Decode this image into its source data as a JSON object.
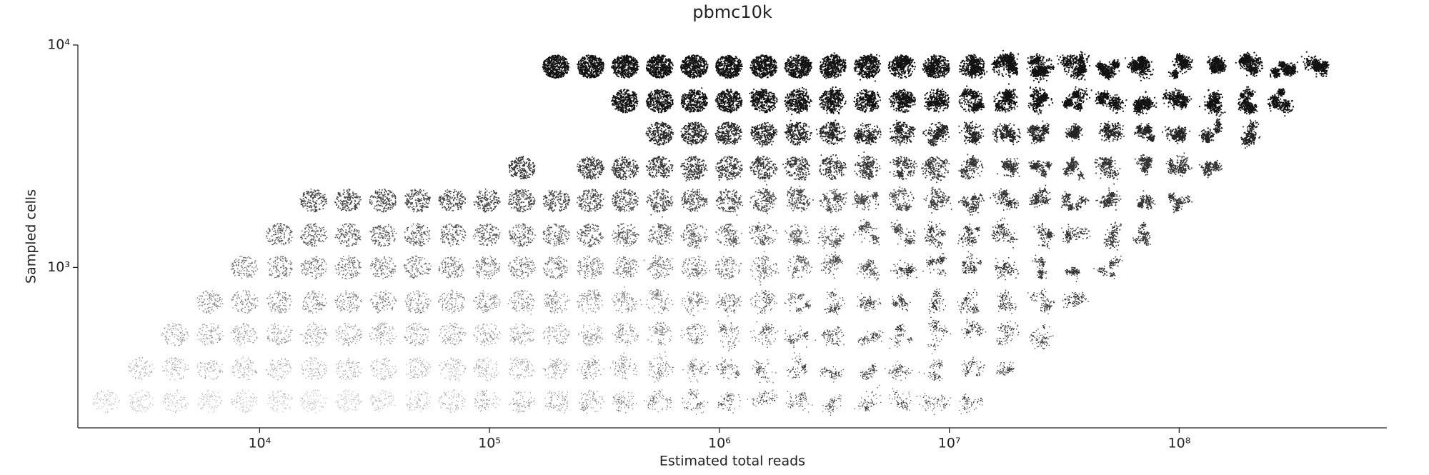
{
  "chart_data": {
    "type": "scatter",
    "title": "pbmc10k",
    "x_label": "Estimated total reads",
    "y_label": "Sampled cells",
    "log_x": true,
    "log_y": true,
    "color": "#000000",
    "xlim": [
      1620,
      800000000
    ],
    "ylim": [
      190,
      10000
    ],
    "xticks": [
      {
        "value": 10000,
        "label": "10⁴"
      },
      {
        "value": 100000,
        "label": "10⁵"
      },
      {
        "value": 1000000,
        "label": "10⁶"
      },
      {
        "value": 10000000,
        "label": "10⁷"
      },
      {
        "value": 100000000,
        "label": "10⁸"
      }
    ],
    "yticks": [
      {
        "value": 1000,
        "label": "10³"
      },
      {
        "value": 10000,
        "label": "10⁴"
      }
    ],
    "rows": [
      {
        "y": 250,
        "x": [
          2150,
          3040,
          4300,
          6080,
          8600,
          12200,
          17200,
          24300,
          34400,
          48600,
          68800,
          97300,
          138000,
          195000,
          275000,
          389000,
          550000,
          778000,
          1100000,
          1560000,
          2200000,
          3110000,
          4400000,
          6230000,
          8810000,
          12500000
        ]
      },
      {
        "y": 350,
        "x": [
          3040,
          4300,
          6080,
          8600,
          12200,
          17200,
          24300,
          34400,
          48600,
          68800,
          97300,
          138000,
          195000,
          275000,
          389000,
          550000,
          778000,
          1100000,
          1560000,
          2200000,
          3110000,
          4400000,
          6230000,
          8810000,
          12500000,
          17600000
        ]
      },
      {
        "y": 500,
        "x": [
          4300,
          6080,
          8600,
          12200,
          17200,
          24300,
          34400,
          48600,
          68800,
          97300,
          138000,
          195000,
          275000,
          389000,
          550000,
          778000,
          1100000,
          1560000,
          2200000,
          3110000,
          4400000,
          6230000,
          8810000,
          12500000,
          17600000,
          24900000
        ]
      },
      {
        "y": 700,
        "x": [
          6080,
          8600,
          12200,
          17200,
          24300,
          34400,
          48600,
          68800,
          97300,
          138000,
          195000,
          275000,
          389000,
          550000,
          778000,
          1100000,
          1560000,
          2200000,
          3110000,
          4400000,
          6230000,
          8810000,
          12500000,
          17600000,
          24900000,
          35200000
        ]
      },
      {
        "y": 1000,
        "x": [
          8600,
          12200,
          17200,
          24300,
          34400,
          48600,
          68800,
          97300,
          138000,
          195000,
          275000,
          389000,
          550000,
          778000,
          1100000,
          1560000,
          2200000,
          3110000,
          4400000,
          6230000,
          8810000,
          12500000,
          17600000,
          24900000,
          35200000,
          49800000
        ]
      },
      {
        "y": 1400,
        "x": [
          12200,
          17200,
          24300,
          34400,
          48600,
          68800,
          97300,
          138000,
          195000,
          275000,
          389000,
          550000,
          778000,
          1100000,
          1560000,
          2200000,
          3110000,
          4400000,
          6230000,
          8810000,
          12500000,
          17600000,
          24900000,
          35200000,
          49800000,
          70400000
        ]
      },
      {
        "y": 2000,
        "x": [
          17200,
          24300,
          34400,
          48600,
          68800,
          97300,
          138000,
          195000,
          275000,
          389000,
          550000,
          778000,
          1100000,
          1560000,
          2200000,
          3110000,
          4400000,
          6230000,
          8810000,
          12500000,
          17600000,
          24900000,
          35200000,
          49800000,
          70400000,
          99600000
        ]
      },
      {
        "y": 2800,
        "x": [
          138000,
          275000,
          389000,
          550000,
          778000,
          1100000,
          1560000,
          2200000,
          3110000,
          4400000,
          6230000,
          8810000,
          12500000,
          17600000,
          24900000,
          35200000,
          49800000,
          70400000,
          99600000,
          141000000
        ]
      },
      {
        "y": 4000,
        "x": [
          550000,
          778000,
          1100000,
          1560000,
          2200000,
          3110000,
          4400000,
          6230000,
          8810000,
          12500000,
          17600000,
          24900000,
          35200000,
          49800000,
          70400000,
          99600000,
          141000000,
          199000000
        ]
      },
      {
        "y": 5600,
        "x": [
          389000,
          550000,
          778000,
          1100000,
          1560000,
          2200000,
          3110000,
          4400000,
          6230000,
          8810000,
          12500000,
          17600000,
          24900000,
          35200000,
          49800000,
          70400000,
          99600000,
          141000000,
          199000000,
          282000000
        ]
      },
      {
        "y": 8000,
        "x": [
          195000,
          275000,
          389000,
          550000,
          778000,
          1100000,
          1560000,
          2200000,
          3110000,
          4400000,
          6230000,
          8810000,
          12500000,
          17600000,
          24900000,
          35200000,
          49800000,
          70400000,
          99600000,
          141000000,
          199000000,
          282000000,
          398000000
        ]
      }
    ]
  }
}
